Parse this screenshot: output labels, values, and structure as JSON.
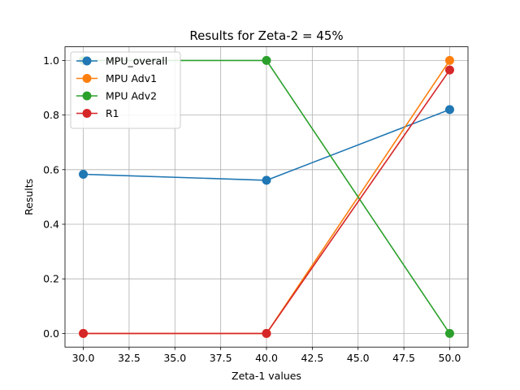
{
  "chart_data": {
    "type": "line",
    "title": "Results for Zeta-2 = 45%",
    "xlabel": "Zeta-1 values",
    "ylabel": "Results",
    "x": [
      30,
      40,
      50
    ],
    "xlim": [
      29,
      51
    ],
    "ylim": [
      -0.05,
      1.05
    ],
    "xticks": [
      30.0,
      32.5,
      35.0,
      37.5,
      40.0,
      42.5,
      45.0,
      47.5,
      50.0
    ],
    "xtick_labels": [
      "30.0",
      "32.5",
      "35.0",
      "37.5",
      "40.0",
      "42.5",
      "45.0",
      "47.5",
      "50.0"
    ],
    "yticks": [
      0.0,
      0.2,
      0.4,
      0.6,
      0.8,
      1.0
    ],
    "ytick_labels": [
      "0.0",
      "0.2",
      "0.4",
      "0.6",
      "0.8",
      "1.0"
    ],
    "grid": true,
    "legend_position": "top-left",
    "series": [
      {
        "name": "MPU_overall",
        "color": "#1f77b4",
        "values": [
          0.583,
          0.561,
          0.82
        ]
      },
      {
        "name": "MPU Adv1",
        "color": "#ff7f0e",
        "values": [
          0.0,
          0.0,
          1.0
        ]
      },
      {
        "name": "MPU Adv2",
        "color": "#2ca02c",
        "values": [
          1.0,
          1.0,
          0.0
        ]
      },
      {
        "name": "R1",
        "color": "#d62728",
        "values": [
          0.0,
          0.0,
          0.965
        ]
      }
    ]
  }
}
